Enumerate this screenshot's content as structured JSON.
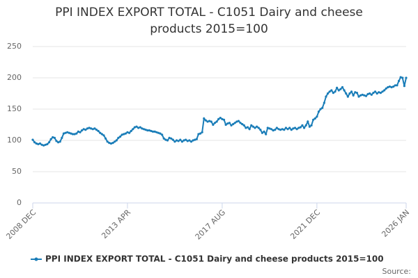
{
  "chart_data": {
    "type": "line",
    "title": "PPI INDEX EXPORT TOTAL - C1051 Dairy and cheese products 2015=100",
    "source": "Source:",
    "categories": [
      "2008 DEC",
      null,
      null,
      null,
      null,
      null,
      null,
      null,
      null,
      null,
      null,
      null,
      null,
      null,
      null,
      null,
      null,
      null,
      null,
      null,
      null,
      null,
      null,
      null,
      null,
      null,
      null,
      null,
      null,
      null,
      null,
      null,
      null,
      null,
      null,
      null,
      null,
      null,
      null,
      null,
      null,
      null,
      null,
      null,
      null,
      null,
      null,
      null,
      null,
      null,
      null,
      null,
      "2013 APR",
      null,
      null,
      null,
      null,
      null,
      null,
      null,
      null,
      null,
      null,
      null,
      null,
      null,
      null,
      null,
      null,
      null,
      null,
      null,
      null,
      null,
      null,
      null,
      null,
      null,
      null,
      null,
      null,
      null,
      null,
      null,
      null,
      null,
      null,
      null,
      null,
      null,
      null,
      null,
      null,
      null,
      null,
      null,
      null,
      null,
      null,
      null,
      null,
      null,
      null,
      null,
      "2017 AUG",
      null,
      null,
      null,
      null,
      null,
      null,
      null,
      null,
      null,
      null,
      null,
      null,
      null,
      null,
      null,
      null,
      null,
      null,
      null,
      null,
      null,
      null,
      null,
      null,
      null,
      null,
      null,
      null,
      null,
      null,
      null,
      null,
      null,
      null,
      null,
      null,
      null,
      null,
      null,
      null,
      null,
      null,
      null,
      null,
      null,
      null,
      null,
      null,
      null,
      null,
      null,
      "2021 DEC",
      null,
      null,
      null,
      null,
      null,
      null,
      null,
      null,
      null,
      null,
      null,
      null,
      null,
      null,
      null,
      null,
      null,
      null,
      null,
      null,
      null,
      null,
      null,
      null,
      null,
      null,
      null,
      null,
      null,
      null,
      null,
      null,
      null,
      null,
      null,
      null,
      null,
      null,
      null,
      null,
      null,
      null,
      null,
      null,
      null,
      null,
      null,
      null,
      "2026 JAN"
    ],
    "series": [
      {
        "name": "PPI INDEX EXPORT TOTAL - C1051 Dairy and cheese products 2015=100",
        "color": "#1a7db8",
        "values": [
          101,
          97,
          95,
          94,
          95,
          93,
          92,
          93,
          94,
          97,
          102,
          105,
          104,
          99,
          97,
          98,
          104,
          111,
          112,
          113,
          112,
          111,
          110,
          110,
          111,
          114,
          113,
          116,
          118,
          117,
          119,
          120,
          119,
          118,
          119,
          117,
          115,
          112,
          110,
          108,
          103,
          98,
          96,
          95,
          96,
          98,
          100,
          104,
          106,
          109,
          110,
          111,
          113,
          112,
          115,
          118,
          121,
          122,
          120,
          121,
          119,
          118,
          117,
          116,
          116,
          115,
          114,
          114,
          113,
          112,
          111,
          109,
          103,
          101,
          100,
          104,
          103,
          101,
          98,
          100,
          99,
          101,
          98,
          100,
          101,
          99,
          100,
          98,
          100,
          101,
          102,
          110,
          111,
          113,
          135,
          132,
          130,
          131,
          130,
          125,
          128,
          130,
          134,
          136,
          134,
          133,
          125,
          127,
          128,
          124,
          126,
          128,
          130,
          131,
          128,
          126,
          124,
          120,
          121,
          118,
          124,
          122,
          120,
          122,
          120,
          117,
          112,
          114,
          110,
          120,
          119,
          118,
          116,
          117,
          120,
          118,
          117,
          118,
          117,
          120,
          118,
          120,
          117,
          119,
          120,
          118,
          120,
          121,
          124,
          120,
          124,
          130,
          122,
          124,
          133,
          135,
          138,
          146,
          150,
          152,
          160,
          170,
          175,
          178,
          180,
          176,
          178,
          184,
          180,
          182,
          185,
          180,
          175,
          170,
          175,
          178,
          172,
          177,
          176,
          170,
          172,
          173,
          172,
          171,
          174,
          175,
          173,
          176,
          178,
          175,
          177,
          176,
          178,
          180,
          183,
          185,
          186,
          185,
          186,
          188,
          188,
          195,
          201,
          200,
          187,
          200
        ]
      }
    ],
    "ylim": [
      0,
      250
    ],
    "yticks": [
      0,
      50,
      100,
      150,
      200,
      250
    ],
    "grid": true,
    "legend": "bottom"
  }
}
